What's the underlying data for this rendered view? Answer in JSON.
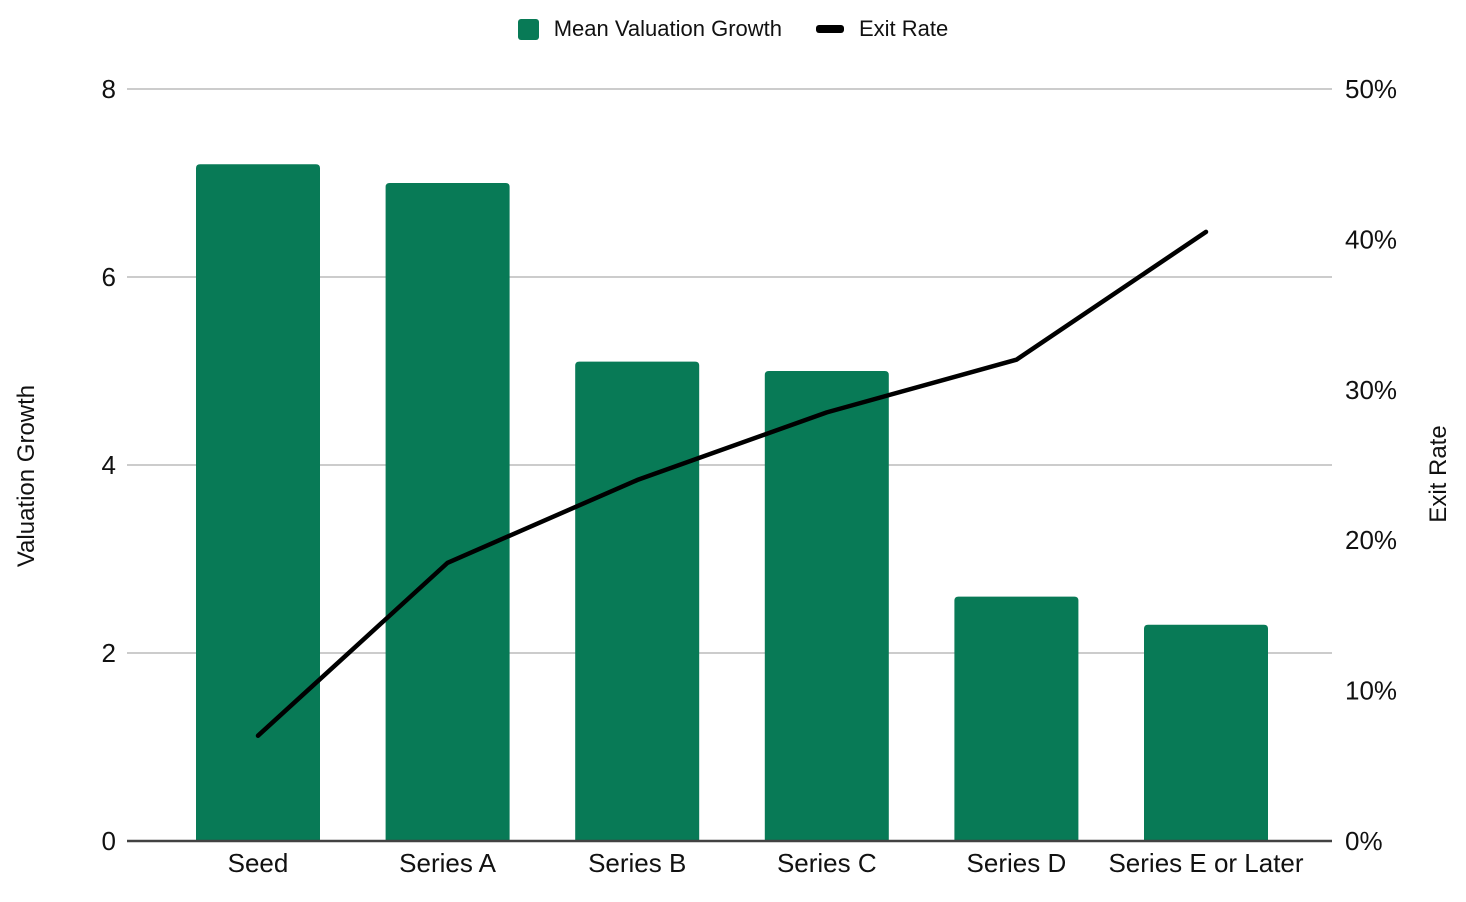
{
  "chart_data": {
    "type": "combo",
    "subtypes": [
      "bar",
      "line"
    ],
    "title": "",
    "categories": [
      "Seed",
      "Series A",
      "Series B",
      "Series C",
      "Series D",
      "Series E or Later"
    ],
    "series": [
      {
        "name": "Mean Valuation Growth",
        "type": "bar",
        "axis": "left",
        "color": "#087a56",
        "values": [
          7.2,
          7.0,
          5.1,
          5.0,
          2.6,
          2.3
        ]
      },
      {
        "name": "Exit Rate",
        "type": "line",
        "axis": "right",
        "color": "#000000",
        "values": [
          7,
          18.5,
          24,
          28.5,
          32,
          40.5
        ],
        "unit": "%"
      }
    ],
    "y_left": {
      "title": "Valuation Growth",
      "min": 0,
      "max": 8,
      "ticks": [
        0,
        2,
        4,
        6,
        8
      ],
      "tick_labels": [
        "0",
        "2",
        "4",
        "6",
        "8"
      ]
    },
    "y_right": {
      "title": "Exit Rate",
      "min": 0,
      "max": 50,
      "ticks": [
        0,
        10,
        20,
        30,
        40,
        50
      ],
      "tick_labels": [
        "0%",
        "10%",
        "20%",
        "30%",
        "40%",
        "50%"
      ]
    },
    "grid": "horizontal",
    "legend_position": "top"
  },
  "legend": {
    "items": [
      {
        "label": "Mean Valuation Growth",
        "marker": "square",
        "color": "#087a56"
      },
      {
        "label": "Exit Rate",
        "marker": "dash",
        "color": "#000000"
      }
    ]
  },
  "colors": {
    "bar": "#087a56",
    "line": "#000000",
    "gridline": "#cccccc",
    "axis_line": "#424242",
    "text": "#111111",
    "background": "#ffffff"
  }
}
